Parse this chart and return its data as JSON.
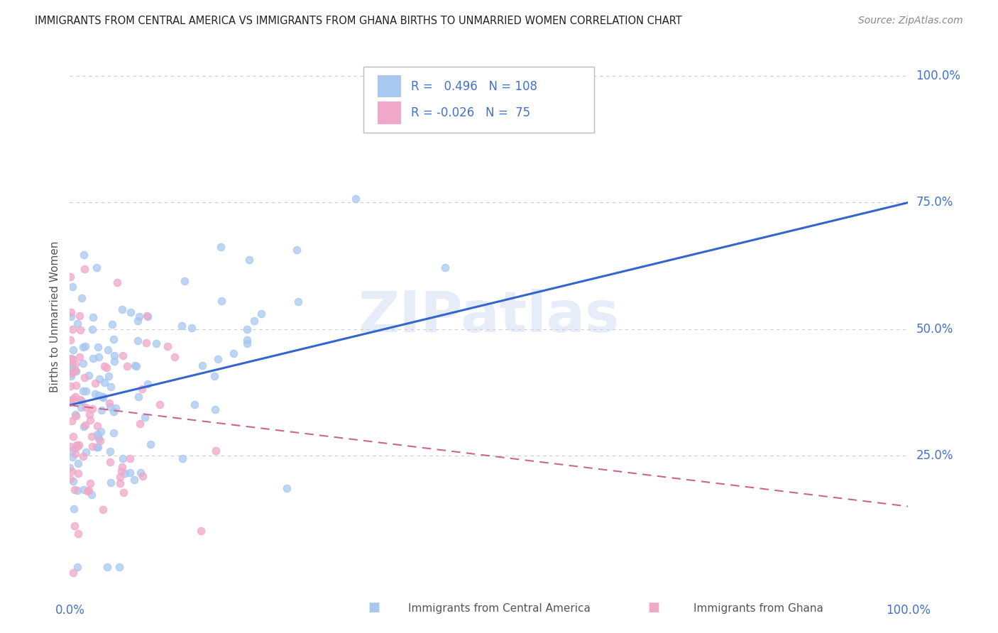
{
  "title": "IMMIGRANTS FROM CENTRAL AMERICA VS IMMIGRANTS FROM GHANA BIRTHS TO UNMARRIED WOMEN CORRELATION CHART",
  "source": "Source: ZipAtlas.com",
  "ylabel": "Births to Unmarried Women",
  "legend_label1": "Immigrants from Central America",
  "legend_label2": "Immigrants from Ghana",
  "R1": 0.496,
  "N1": 108,
  "R2": -0.026,
  "N2": 75,
  "color_blue": "#a8c8f0",
  "color_pink": "#f0a8c8",
  "trend_blue": "#3366cc",
  "trend_pink": "#cc6688",
  "ytick_labels": [
    "25.0%",
    "50.0%",
    "75.0%",
    "100.0%"
  ],
  "ytick_values": [
    0.25,
    0.5,
    0.75,
    1.0
  ],
  "watermark": "ZIPatlas",
  "background_color": "#ffffff",
  "grid_color": "#cccccc",
  "label_color": "#4472c4",
  "title_color": "#222222",
  "source_color": "#888888"
}
